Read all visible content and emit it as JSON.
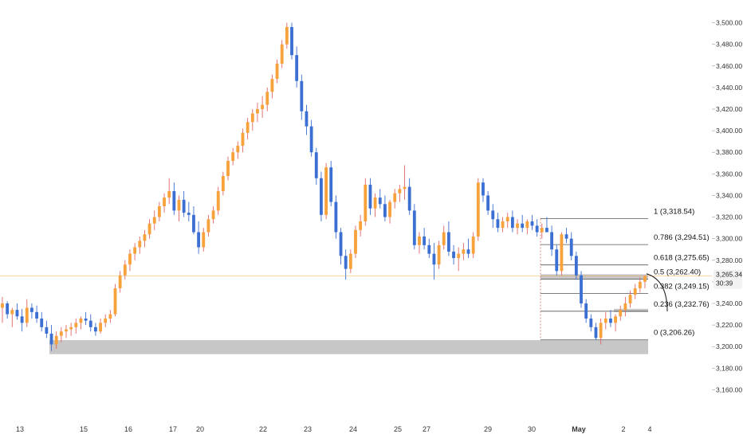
{
  "chart_data": {
    "type": "candlestick",
    "y_axis": {
      "min": 3150,
      "max": 3510,
      "ticks": [
        3160,
        3180,
        3200,
        3220,
        3240,
        3260,
        3280,
        3300,
        3320,
        3340,
        3360,
        3380,
        3400,
        3420,
        3440,
        3460,
        3480,
        3500
      ],
      "tick_labels": [
        "3,160.00",
        "3,180.00",
        "3,200.00",
        "3,220.00",
        "3,240.00",
        "3,260.00",
        "3,280.00",
        "3,300.00",
        "3,320.00",
        "3,340.00",
        "3,360.00",
        "3,380.00",
        "3,400.00",
        "3,420.00",
        "3,440.00",
        "3,460.00",
        "3,480.00",
        "3,500.00"
      ]
    },
    "x_axis": {
      "labels": [
        "13",
        "15",
        "16",
        "17",
        "20",
        "22",
        "23",
        "24",
        "25",
        "27",
        "29",
        "30",
        "May",
        "2",
        "4"
      ],
      "bold_labels": [
        "May"
      ]
    },
    "colors": {
      "up": "#f7a23a",
      "down": "#3b6fd1",
      "up_wick": "#e06666",
      "down_wick": "#3b6fd1",
      "fib_line": "#555555",
      "zone": "#bdbdbd",
      "current_line": "#f7a23a",
      "current_box": "#f2f2f2"
    },
    "candles": [
      [
        3236,
        3246,
        3222,
        3240
      ],
      [
        3240,
        3242,
        3226,
        3230
      ],
      [
        3230,
        3236,
        3218,
        3234
      ],
      [
        3234,
        3240,
        3225,
        3228
      ],
      [
        3228,
        3235,
        3214,
        3222
      ],
      [
        3222,
        3244,
        3218,
        3236
      ],
      [
        3236,
        3240,
        3226,
        3232
      ],
      [
        3232,
        3238,
        3222,
        3226
      ],
      [
        3226,
        3232,
        3214,
        3218
      ],
      [
        3218,
        3224,
        3208,
        3212
      ],
      [
        3212,
        3220,
        3196,
        3202
      ],
      [
        3202,
        3214,
        3198,
        3210
      ],
      [
        3210,
        3218,
        3204,
        3214
      ],
      [
        3214,
        3220,
        3208,
        3216
      ],
      [
        3216,
        3222,
        3210,
        3218
      ],
      [
        3218,
        3226,
        3212,
        3222
      ],
      [
        3222,
        3228,
        3216,
        3226
      ],
      [
        3226,
        3232,
        3220,
        3224
      ],
      [
        3224,
        3230,
        3214,
        3218
      ],
      [
        3218,
        3222,
        3210,
        3214
      ],
      [
        3214,
        3226,
        3212,
        3222
      ],
      [
        3222,
        3230,
        3218,
        3226
      ],
      [
        3226,
        3234,
        3222,
        3230
      ],
      [
        3230,
        3258,
        3228,
        3254
      ],
      [
        3254,
        3270,
        3250,
        3266
      ],
      [
        3266,
        3280,
        3262,
        3276
      ],
      [
        3276,
        3290,
        3270,
        3286
      ],
      [
        3286,
        3296,
        3280,
        3292
      ],
      [
        3292,
        3302,
        3286,
        3298
      ],
      [
        3298,
        3308,
        3292,
        3304
      ],
      [
        3304,
        3318,
        3300,
        3314
      ],
      [
        3314,
        3326,
        3308,
        3320
      ],
      [
        3320,
        3334,
        3316,
        3330
      ],
      [
        3330,
        3342,
        3324,
        3338
      ],
      [
        3338,
        3356,
        3332,
        3344
      ],
      [
        3344,
        3352,
        3322,
        3326
      ],
      [
        3326,
        3340,
        3316,
        3336
      ],
      [
        3336,
        3344,
        3320,
        3324
      ],
      [
        3324,
        3334,
        3316,
        3322
      ],
      [
        3322,
        3330,
        3304,
        3306
      ],
      [
        3306,
        3316,
        3286,
        3292
      ],
      [
        3292,
        3310,
        3288,
        3306
      ],
      [
        3306,
        3322,
        3302,
        3318
      ],
      [
        3318,
        3330,
        3314,
        3326
      ],
      [
        3326,
        3348,
        3322,
        3344
      ],
      [
        3344,
        3362,
        3340,
        3358
      ],
      [
        3358,
        3376,
        3354,
        3372
      ],
      [
        3372,
        3384,
        3368,
        3380
      ],
      [
        3380,
        3390,
        3374,
        3386
      ],
      [
        3386,
        3402,
        3380,
        3398
      ],
      [
        3398,
        3412,
        3392,
        3408
      ],
      [
        3408,
        3420,
        3400,
        3416
      ],
      [
        3416,
        3426,
        3408,
        3420
      ],
      [
        3420,
        3432,
        3412,
        3424
      ],
      [
        3424,
        3440,
        3418,
        3436
      ],
      [
        3436,
        3452,
        3430,
        3448
      ],
      [
        3448,
        3466,
        3444,
        3462
      ],
      [
        3462,
        3484,
        3458,
        3480
      ],
      [
        3480,
        3500,
        3476,
        3496
      ],
      [
        3496,
        3500,
        3466,
        3470
      ],
      [
        3470,
        3478,
        3440,
        3446
      ],
      [
        3446,
        3452,
        3410,
        3418
      ],
      [
        3418,
        3424,
        3396,
        3404
      ],
      [
        3404,
        3410,
        3376,
        3380
      ],
      [
        3380,
        3384,
        3350,
        3356
      ],
      [
        3356,
        3362,
        3316,
        3322
      ],
      [
        3322,
        3370,
        3318,
        3366
      ],
      [
        3366,
        3372,
        3330,
        3334
      ],
      [
        3334,
        3340,
        3300,
        3306
      ],
      [
        3306,
        3310,
        3276,
        3284
      ],
      [
        3284,
        3290,
        3262,
        3272
      ],
      [
        3272,
        3290,
        3268,
        3286
      ],
      [
        3286,
        3312,
        3282,
        3308
      ],
      [
        3308,
        3322,
        3302,
        3316
      ],
      [
        3316,
        3356,
        3312,
        3350
      ],
      [
        3350,
        3356,
        3322,
        3328
      ],
      [
        3328,
        3342,
        3320,
        3338
      ],
      [
        3338,
        3346,
        3328,
        3332
      ],
      [
        3332,
        3340,
        3316,
        3320
      ],
      [
        3320,
        3336,
        3314,
        3334
      ],
      [
        3334,
        3346,
        3328,
        3342
      ],
      [
        3342,
        3350,
        3334,
        3346
      ],
      [
        3346,
        3368,
        3336,
        3348
      ],
      [
        3348,
        3356,
        3322,
        3326
      ],
      [
        3326,
        3332,
        3290,
        3294
      ],
      [
        3294,
        3306,
        3286,
        3302
      ],
      [
        3302,
        3310,
        3290,
        3294
      ],
      [
        3294,
        3300,
        3282,
        3286
      ],
      [
        3286,
        3296,
        3262,
        3276
      ],
      [
        3276,
        3298,
        3272,
        3294
      ],
      [
        3294,
        3312,
        3290,
        3306
      ],
      [
        3306,
        3316,
        3284,
        3288
      ],
      [
        3288,
        3294,
        3276,
        3282
      ],
      [
        3282,
        3292,
        3270,
        3286
      ],
      [
        3286,
        3296,
        3280,
        3290
      ],
      [
        3290,
        3300,
        3282,
        3286
      ],
      [
        3286,
        3306,
        3282,
        3302
      ],
      [
        3302,
        3356,
        3298,
        3352
      ],
      [
        3352,
        3356,
        3334,
        3340
      ],
      [
        3340,
        3344,
        3322,
        3326
      ],
      [
        3326,
        3332,
        3310,
        3318
      ],
      [
        3318,
        3324,
        3306,
        3310
      ],
      [
        3310,
        3320,
        3306,
        3316
      ],
      [
        3316,
        3324,
        3310,
        3320
      ],
      [
        3320,
        3326,
        3306,
        3310
      ],
      [
        3310,
        3318,
        3304,
        3314
      ],
      [
        3314,
        3322,
        3306,
        3310
      ],
      [
        3310,
        3318,
        3304,
        3316
      ],
      [
        3316,
        3322,
        3308,
        3312
      ],
      [
        3312,
        3318,
        3302,
        3306
      ],
      [
        3306,
        3314,
        3300,
        3310
      ],
      [
        3310,
        3320,
        3306,
        3306
      ],
      [
        3306,
        3312,
        3284,
        3290
      ],
      [
        3290,
        3294,
        3266,
        3270
      ],
      [
        3270,
        3306,
        3266,
        3304
      ],
      [
        3304,
        3310,
        3296,
        3300
      ],
      [
        3300,
        3306,
        3280,
        3284
      ],
      [
        3284,
        3288,
        3262,
        3266
      ],
      [
        3266,
        3270,
        3236,
        3240
      ],
      [
        3240,
        3244,
        3222,
        3226
      ],
      [
        3226,
        3230,
        3214,
        3218
      ],
      [
        3218,
        3222,
        3206,
        3208
      ],
      [
        3208,
        3226,
        3202,
        3222
      ],
      [
        3222,
        3232,
        3216,
        3226
      ],
      [
        3226,
        3234,
        3218,
        3222
      ],
      [
        3222,
        3230,
        3214,
        3228
      ],
      [
        3228,
        3238,
        3224,
        3234
      ],
      [
        3234,
        3246,
        3228,
        3240
      ],
      [
        3240,
        3252,
        3236,
        3248
      ],
      [
        3248,
        3258,
        3244,
        3254
      ],
      [
        3254,
        3264,
        3250,
        3260
      ],
      [
        3260,
        3266,
        3254,
        3265.34
      ]
    ],
    "fibonacci": [
      {
        "label": "1 (3,318.54)",
        "level": 3318.54
      },
      {
        "label": "0.786 (3,294.51)",
        "level": 3294.51
      },
      {
        "label": "0.618 (3,275.65)",
        "level": 3275.65
      },
      {
        "label": "0.5 (3,262.40)",
        "level": 3262.4
      },
      {
        "label": "0.382 (3,249.15)",
        "level": 3249.15
      },
      {
        "label": "0.236 (3,232.76)",
        "level": 3232.76
      },
      {
        "label": "0 (3,206.26)",
        "level": 3206.26
      }
    ],
    "zones": [
      {
        "y_low": 3193,
        "y_high": 3206
      },
      {
        "y_low": 3262,
        "y_high": 3267
      },
      {
        "y_low": 3232,
        "y_high": 3235
      }
    ],
    "current_price": {
      "value": 3265.34,
      "label": "3,265.34",
      "countdown": "30:39"
    }
  }
}
